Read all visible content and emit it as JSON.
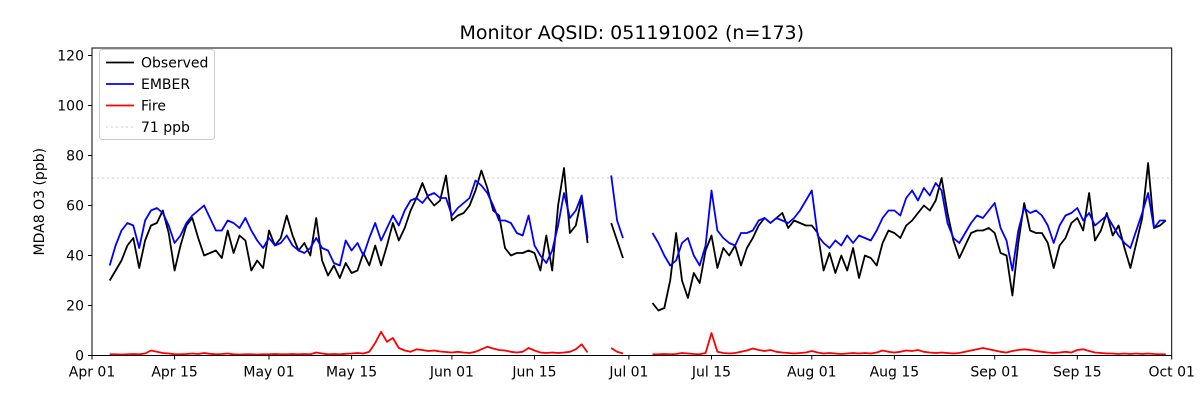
{
  "title": "Monitor AQSID: 051191002 (n=173)",
  "axes": {
    "ylabel": "MDA8 O3 (ppb)",
    "y_ticks": [
      0,
      20,
      40,
      60,
      80,
      100,
      120
    ],
    "x_tick_labels": [
      "Apr 01",
      "Apr 15",
      "May 01",
      "May 15",
      "Jun 01",
      "Jun 15",
      "Jul 01",
      "Jul 15",
      "Aug 01",
      "Aug 15",
      "Sep 01",
      "Sep 15",
      "Oct 01"
    ]
  },
  "legend": {
    "position": "upper left",
    "items": [
      {
        "label": "Observed",
        "color": "#000000",
        "style": "solid"
      },
      {
        "label": "EMBER",
        "color": "#0000ff",
        "style": "solid"
      },
      {
        "label": "Fire",
        "color": "#ff0000",
        "style": "solid"
      },
      {
        "label": "71 ppb",
        "color": "#d3d3d3",
        "style": "dotted"
      }
    ]
  },
  "chart_data": {
    "type": "line",
    "title": "Monitor AQSID: 051191002 (n=173)",
    "n_observations": 173,
    "xlabel": "",
    "ylabel": "MDA8 O3 (ppb)",
    "ylim": [
      0,
      123
    ],
    "y_ticks": [
      0,
      20,
      40,
      60,
      80,
      100,
      120
    ],
    "grid": false,
    "legend_position": "upper left",
    "threshold": {
      "label": "71 ppb",
      "value": 71,
      "color": "#d3d3d3",
      "style": "dotted"
    },
    "x_axis": {
      "total_days": 183,
      "start_day_offset": 3,
      "ticks": [
        {
          "label": "Apr 01",
          "day": 0
        },
        {
          "label": "Apr 15",
          "day": 14
        },
        {
          "label": "May 01",
          "day": 30
        },
        {
          "label": "May 15",
          "day": 44
        },
        {
          "label": "Jun 01",
          "day": 61
        },
        {
          "label": "Jun 15",
          "day": 75
        },
        {
          "label": "Jul 01",
          "day": 91
        },
        {
          "label": "Jul 15",
          "day": 105
        },
        {
          "label": "Aug 01",
          "day": 122
        },
        {
          "label": "Aug 15",
          "day": 136
        },
        {
          "label": "Sep 01",
          "day": 153
        },
        {
          "label": "Sep 15",
          "day": 167
        },
        {
          "label": "Oct 01",
          "day": 183
        }
      ]
    },
    "dates": [
      "Apr 04",
      "Apr 05",
      "Apr 06",
      "Apr 07",
      "Apr 08",
      "Apr 09",
      "Apr 10",
      "Apr 11",
      "Apr 12",
      "Apr 13",
      "Apr 14",
      "Apr 15",
      "Apr 16",
      "Apr 17",
      "Apr 18",
      "Apr 19",
      "Apr 20",
      "Apr 21",
      "Apr 22",
      "Apr 23",
      "Apr 24",
      "Apr 25",
      "Apr 26",
      "Apr 27",
      "Apr 28",
      "Apr 29",
      "Apr 30",
      "May 01",
      "May 02",
      "May 03",
      "May 04",
      "May 05",
      "May 06",
      "May 07",
      "May 08",
      "May 09",
      "May 10",
      "May 11",
      "May 12",
      "May 13",
      "May 14",
      "May 15",
      "May 16",
      "May 17",
      "May 18",
      "May 19",
      "May 20",
      "May 21",
      "May 22",
      "May 23",
      "May 24",
      "May 25",
      "May 26",
      "May 27",
      "May 28",
      "May 29",
      "May 30",
      "May 31",
      "Jun 01",
      "Jun 02",
      "Jun 03",
      "Jun 04",
      "Jun 05",
      "Jun 06",
      "Jun 07",
      "Jun 08",
      "Jun 09",
      "Jun 10",
      "Jun 11",
      "Jun 12",
      "Jun 13",
      "Jun 14",
      "Jun 15",
      "Jun 16",
      "Jun 17",
      "Jun 18",
      "Jun 19",
      "Jun 20",
      "Jun 21",
      "Jun 22",
      "Jun 23",
      "Jun 24",
      "Jun 25",
      "Jun 26",
      "Jun 27",
      "Jun 28",
      "Jun 29",
      "Jun 30",
      "Jul 01",
      "Jul 02",
      "Jul 03",
      "Jul 04",
      "Jul 05",
      "Jul 06",
      "Jul 07",
      "Jul 08",
      "Jul 09",
      "Jul 10",
      "Jul 11",
      "Jul 12",
      "Jul 13",
      "Jul 14",
      "Jul 15",
      "Jul 16",
      "Jul 17",
      "Jul 18",
      "Jul 19",
      "Jul 20",
      "Jul 21",
      "Jul 22",
      "Jul 23",
      "Jul 24",
      "Jul 25",
      "Jul 26",
      "Jul 27",
      "Jul 28",
      "Jul 29",
      "Jul 30",
      "Jul 31",
      "Aug 01",
      "Aug 02",
      "Aug 03",
      "Aug 04",
      "Aug 05",
      "Aug 06",
      "Aug 07",
      "Aug 08",
      "Aug 09",
      "Aug 10",
      "Aug 11",
      "Aug 12",
      "Aug 13",
      "Aug 14",
      "Aug 15",
      "Aug 16",
      "Aug 17",
      "Aug 18",
      "Aug 19",
      "Aug 20",
      "Aug 21",
      "Aug 22",
      "Aug 23",
      "Aug 24",
      "Aug 25",
      "Aug 26",
      "Aug 27",
      "Aug 28",
      "Aug 29",
      "Aug 30",
      "Aug 31",
      "Sep 01",
      "Sep 02",
      "Sep 03",
      "Sep 04",
      "Sep 05",
      "Sep 06",
      "Sep 07",
      "Sep 08",
      "Sep 09",
      "Sep 10",
      "Sep 11",
      "Sep 12",
      "Sep 13",
      "Sep 14",
      "Sep 15",
      "Sep 16",
      "Sep 17",
      "Sep 18",
      "Sep 19",
      "Sep 20",
      "Sep 21",
      "Sep 22",
      "Sep 23",
      "Sep 24",
      "Sep 25",
      "Sep 26",
      "Sep 27",
      "Sep 28",
      "Sep 29",
      "Sep 30"
    ],
    "series": [
      {
        "name": "Observed",
        "color": "#000000",
        "values": [
          30,
          34,
          38,
          44,
          47,
          35,
          46,
          52,
          53,
          58,
          49,
          34,
          44,
          52,
          55,
          47,
          40,
          41,
          42,
          39,
          50,
          41,
          48,
          46,
          34,
          38,
          35,
          50,
          44,
          47,
          56,
          48,
          42,
          45,
          40,
          55,
          38,
          32,
          36,
          31,
          37,
          33,
          34,
          41,
          36,
          44,
          36,
          44,
          53,
          46,
          51,
          58,
          63,
          69,
          63,
          60,
          62,
          72,
          54,
          56,
          57,
          60,
          66,
          74,
          67,
          58,
          56,
          43,
          40,
          41,
          41,
          42,
          41,
          34,
          48,
          34,
          60,
          75,
          49,
          52,
          63,
          45,
          null,
          null,
          null,
          53,
          46,
          39,
          null,
          null,
          null,
          null,
          21,
          18,
          19,
          30,
          49,
          30,
          23,
          33,
          29,
          42,
          48,
          35,
          43,
          40,
          44,
          36,
          43,
          47,
          52,
          55,
          53,
          55,
          57,
          51,
          54,
          53,
          52,
          52,
          49,
          34,
          41,
          33,
          40,
          34,
          43,
          31,
          40,
          39,
          36,
          45,
          50,
          49,
          47,
          52,
          54,
          57,
          60,
          58,
          62,
          71,
          57,
          46,
          39,
          44,
          49,
          50,
          50,
          51,
          49,
          41,
          40,
          24,
          45,
          61,
          50,
          49,
          49,
          45,
          35,
          44,
          47,
          53,
          55,
          50,
          65,
          46,
          50,
          57,
          48,
          52,
          43,
          35,
          45,
          55,
          77,
          51,
          52,
          54
        ]
      },
      {
        "name": "EMBER",
        "color": "#0000ff",
        "values": [
          36,
          44,
          50,
          53,
          52,
          43,
          54,
          58,
          59,
          57,
          52,
          45,
          48,
          53,
          56,
          58,
          60,
          55,
          50,
          50,
          54,
          53,
          51,
          55,
          50,
          46,
          43,
          47,
          44,
          45,
          48,
          44,
          42,
          41,
          43,
          47,
          43,
          42,
          37,
          36,
          46,
          42,
          45,
          40,
          47,
          53,
          46,
          51,
          56,
          52,
          58,
          62,
          63,
          61,
          64,
          65,
          63,
          63,
          56,
          59,
          61,
          63,
          70,
          68,
          65,
          60,
          54,
          54,
          53,
          49,
          48,
          56,
          44,
          40,
          37,
          42,
          52,
          65,
          55,
          58,
          64,
          47,
          null,
          null,
          null,
          72,
          54,
          47,
          null,
          null,
          null,
          null,
          49,
          45,
          40,
          36,
          38,
          45,
          47,
          40,
          36,
          44,
          66,
          50,
          47,
          45,
          44,
          49,
          49,
          50,
          54,
          55,
          53,
          55,
          54,
          53,
          55,
          58,
          62,
          66,
          48,
          45,
          43,
          46,
          44,
          48,
          45,
          48,
          47,
          46,
          50,
          55,
          58,
          58,
          56,
          63,
          66,
          62,
          67,
          64,
          69,
          66,
          53,
          47,
          45,
          49,
          53,
          56,
          55,
          58,
          61,
          51,
          46,
          34,
          50,
          59,
          57,
          58,
          56,
          52,
          45,
          52,
          56,
          57,
          59,
          54,
          57,
          52,
          54,
          56,
          52,
          48,
          45,
          43,
          50,
          57,
          65,
          51,
          54,
          54
        ]
      },
      {
        "name": "Fire",
        "color": "#ff0000",
        "values": [
          0.5,
          0.5,
          0.4,
          0.5,
          0.6,
          0.5,
          0.8,
          2,
          1.5,
          1,
          0.8,
          0.5,
          0.5,
          0.6,
          0.8,
          0.6,
          1,
          0.7,
          0.5,
          0.6,
          0.8,
          0.5,
          0.4,
          0.5,
          0.5,
          0.4,
          0.5,
          0.5,
          0.6,
          0.5,
          0.5,
          0.6,
          0.5,
          0.6,
          0.5,
          1.2,
          0.8,
          0.5,
          0.6,
          0.5,
          0.7,
          0.8,
          1,
          0.8,
          1.5,
          5,
          9.5,
          5.5,
          7,
          3,
          2,
          1.5,
          2.5,
          2.2,
          1.8,
          2,
          1.6,
          1.4,
          1.2,
          1.5,
          1.2,
          1,
          1.5,
          2.5,
          3.5,
          2.8,
          2.2,
          2,
          1.5,
          1.2,
          1.5,
          3,
          2,
          1.2,
          1,
          1.2,
          1,
          1.2,
          1.5,
          2.5,
          4.5,
          1.2,
          null,
          null,
          null,
          3,
          1.5,
          0.8,
          null,
          null,
          null,
          null,
          0.5,
          0.5,
          0.6,
          0.5,
          0.6,
          1,
          0.8,
          0.6,
          0.5,
          1,
          9,
          1.5,
          1,
          0.8,
          1,
          1.5,
          2,
          2.8,
          2.2,
          1.8,
          2.2,
          1.5,
          1.2,
          1,
          0.8,
          1,
          1.2,
          1.8,
          1.2,
          0.8,
          1,
          0.8,
          0.6,
          0.8,
          1,
          0.8,
          1,
          0.8,
          1.2,
          2,
          1.5,
          1.2,
          1.5,
          2,
          1.8,
          2.2,
          1.5,
          1.2,
          1,
          1.2,
          1,
          0.8,
          1,
          1.5,
          2,
          2.5,
          3,
          2.5,
          2,
          1.5,
          1.2,
          1.8,
          2.2,
          2.5,
          2.2,
          1.8,
          1.5,
          1.2,
          1,
          1.2,
          1.5,
          1.2,
          2.2,
          2.5,
          1.8,
          1.2,
          1,
          0.8,
          0.8,
          0.6,
          0.8,
          0.6,
          0.8,
          0.6,
          0.8,
          0.6,
          0.5,
          0.5
        ]
      }
    ]
  }
}
